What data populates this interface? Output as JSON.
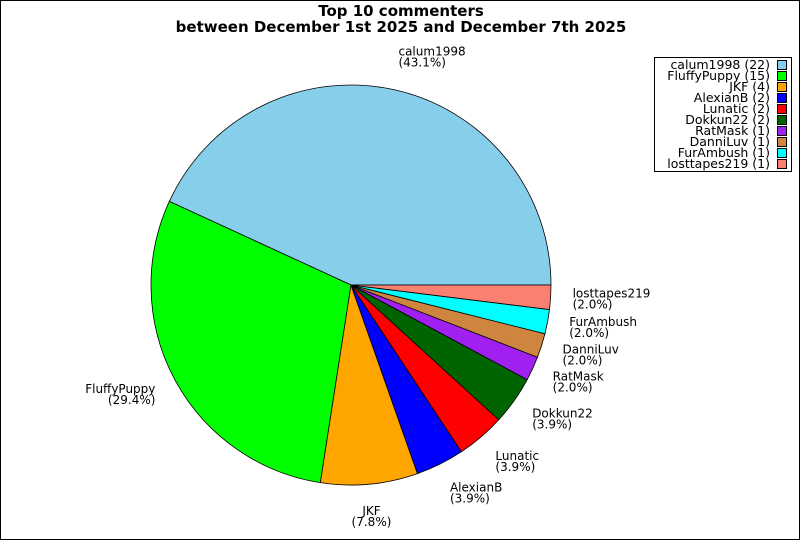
{
  "chart_data": {
    "type": "pie",
    "title_line1": "Top 10 commenters",
    "title_line2": "between December 1st 2025 and December 7th 2025",
    "slices": [
      {
        "name": "calum1998",
        "value": 22,
        "percent": "43.1%",
        "color": "#87CEEB"
      },
      {
        "name": "FluffyPuppy",
        "value": 15,
        "percent": "29.4%",
        "color": "#00FF00"
      },
      {
        "name": "JKF",
        "value": 4,
        "percent": "7.8%",
        "color": "#FFA500"
      },
      {
        "name": "AlexianB",
        "value": 2,
        "percent": "3.9%",
        "color": "#0000FF"
      },
      {
        "name": "Lunatic",
        "value": 2,
        "percent": "3.9%",
        "color": "#FF0000"
      },
      {
        "name": "Dokkun22",
        "value": 2,
        "percent": "3.9%",
        "color": "#006400"
      },
      {
        "name": "RatMask",
        "value": 1,
        "percent": "2.0%",
        "color": "#A020F0"
      },
      {
        "name": "DanniLuv",
        "value": 1,
        "percent": "2.0%",
        "color": "#CD853F"
      },
      {
        "name": "FurAmbush",
        "value": 1,
        "percent": "2.0%",
        "color": "#00FFFF"
      },
      {
        "name": "losttapes219",
        "value": 1,
        "percent": "2.0%",
        "color": "#FA8072"
      }
    ],
    "start_angle": "east",
    "direction": "counterclockwise",
    "legend_placement": "top-right"
  }
}
